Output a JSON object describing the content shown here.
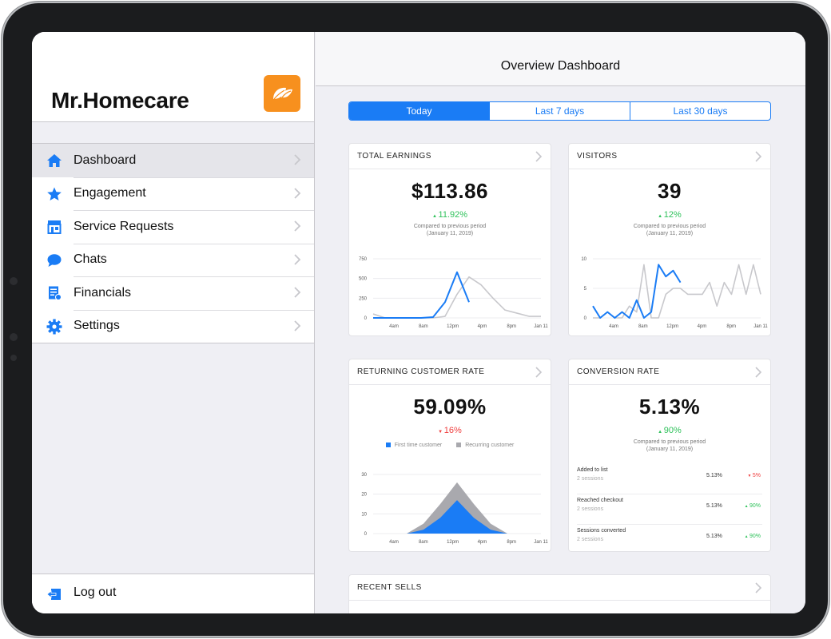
{
  "sidebar": {
    "app_title": "Mr.Homecare",
    "items": [
      {
        "label": "Dashboard",
        "icon": "home-icon",
        "active": true
      },
      {
        "label": "Engagement",
        "icon": "star-icon",
        "active": false
      },
      {
        "label": "Service Requests",
        "icon": "storefront-icon",
        "active": false
      },
      {
        "label": "Chats",
        "icon": "chat-bubble-icon",
        "active": false
      },
      {
        "label": "Financials",
        "icon": "receipt-icon",
        "active": false
      },
      {
        "label": "Settings",
        "icon": "gear-icon",
        "active": false
      }
    ],
    "logout_label": "Log out"
  },
  "header": {
    "title": "Overview Dashboard"
  },
  "period_tabs": {
    "today": "Today",
    "last7": "Last 7 days",
    "last30": "Last 30 days",
    "selected": "Today"
  },
  "cards": {
    "earnings": {
      "title": "TOTAL EARNINGS",
      "value": "$113.86",
      "delta": "11.92%",
      "compare_line1": "Compared to previous period",
      "compare_line2": "(January 11, 2019)"
    },
    "visitors": {
      "title": "VISITORS",
      "value": "39",
      "delta": "12%",
      "compare_line1": "Compared to previous period",
      "compare_line2": "(January 11, 2019)"
    },
    "returning": {
      "title": "RETURNING CUSTOMER RATE",
      "value": "59.09%",
      "delta": "16%",
      "legend_first": "First time customer",
      "legend_recurring": "Recurring customer"
    },
    "conversion": {
      "title": "CONVERSION RATE",
      "value": "5.13%",
      "delta": "90%",
      "compare_line1": "Compared to previous period",
      "compare_line2": "(January 11, 2019)",
      "rows": [
        {
          "name": "Added to list",
          "sub": "2 sessions",
          "value": "5.13%",
          "delta": "5%"
        },
        {
          "name": "Reached checkout",
          "sub": "2 sessions",
          "value": "5.13%",
          "delta": "90%"
        },
        {
          "name": "Sessions converted",
          "sub": "2 sessions",
          "value": "5.13%",
          "delta": "90%"
        }
      ]
    },
    "recent": {
      "title": "RECENT SELLS"
    }
  },
  "colors": {
    "accent": "#1a7cf5",
    "brand_logo": "#f7901e",
    "up": "#2fc25b",
    "down": "#ef3d3d",
    "comparison": "#c8c8cc"
  },
  "chart_data": [
    {
      "type": "line",
      "x": [
        "12am",
        "2am",
        "4am",
        "6am",
        "8am",
        "10am",
        "11am",
        "12pm",
        "1pm",
        "2pm",
        "4pm",
        "6pm",
        "8pm",
        "10pm",
        "Jan 11"
      ],
      "x_ticks": [
        "4am",
        "8am",
        "12pm",
        "4pm",
        "8pm",
        "Jan 11"
      ],
      "y_ticks": [
        "0",
        "250",
        "500",
        "750"
      ],
      "ylim": [
        0,
        750
      ],
      "series": [
        {
          "values": [
            0,
            0,
            0,
            0,
            0,
            10,
            200,
            580,
            200,
            null,
            null,
            null,
            null,
            null,
            null
          ],
          "color": "#1a7cf5"
        },
        {
          "values": [
            50,
            0,
            0,
            0,
            0,
            0,
            20,
            300,
            520,
            420,
            250,
            100,
            60,
            20,
            20
          ],
          "color": "#c8c8cc"
        }
      ]
    },
    {
      "type": "line",
      "x": [
        "12am",
        "1am",
        "2am",
        "3am",
        "4am",
        "5am",
        "6am",
        "7am",
        "8am",
        "9am",
        "10am",
        "11am",
        "12pm",
        "1pm",
        "2pm",
        "3pm",
        "4pm",
        "5pm",
        "6pm",
        "7pm",
        "8pm",
        "9pm",
        "10pm",
        "Jan 11"
      ],
      "x_ticks": [
        "4am",
        "8am",
        "12pm",
        "4pm",
        "8pm",
        "Jan 11"
      ],
      "y_ticks": [
        "0",
        "5",
        "10"
      ],
      "ylim": [
        0,
        10
      ],
      "series": [
        {
          "values": [
            2,
            0,
            1,
            0,
            1,
            0,
            3,
            0,
            1,
            9,
            7,
            8,
            6,
            null,
            null,
            null,
            null,
            null,
            null,
            null,
            null,
            null,
            null,
            null
          ],
          "color": "#1a7cf5"
        },
        {
          "values": [
            0,
            0,
            1,
            0,
            0,
            2,
            1,
            9,
            0,
            0,
            4,
            5,
            5,
            4,
            4,
            4,
            6,
            2,
            6,
            4,
            9,
            4,
            9,
            4
          ],
          "color": "#c8c8cc"
        }
      ]
    },
    {
      "type": "area",
      "x_ticks": [
        "4am",
        "8am",
        "12pm",
        "4pm",
        "8pm",
        "Jan 11"
      ],
      "y_ticks": [
        "0",
        "10",
        "20",
        "30"
      ],
      "ylim": [
        0,
        30
      ],
      "x": [
        "12am",
        "4am",
        "8am",
        "10am",
        "11am",
        "12pm",
        "1pm",
        "2pm",
        "4pm",
        "8pm",
        "Jan 11"
      ],
      "series": [
        {
          "name": "Recurring customer",
          "values": [
            0,
            0,
            0,
            5,
            15,
            26,
            15,
            5,
            0,
            0,
            0
          ],
          "color": "#a9a9ae"
        },
        {
          "name": "First time customer",
          "values": [
            0,
            0,
            0,
            2,
            8,
            17,
            8,
            2,
            0,
            0,
            0
          ],
          "color": "#1a7cf5"
        }
      ]
    }
  ]
}
